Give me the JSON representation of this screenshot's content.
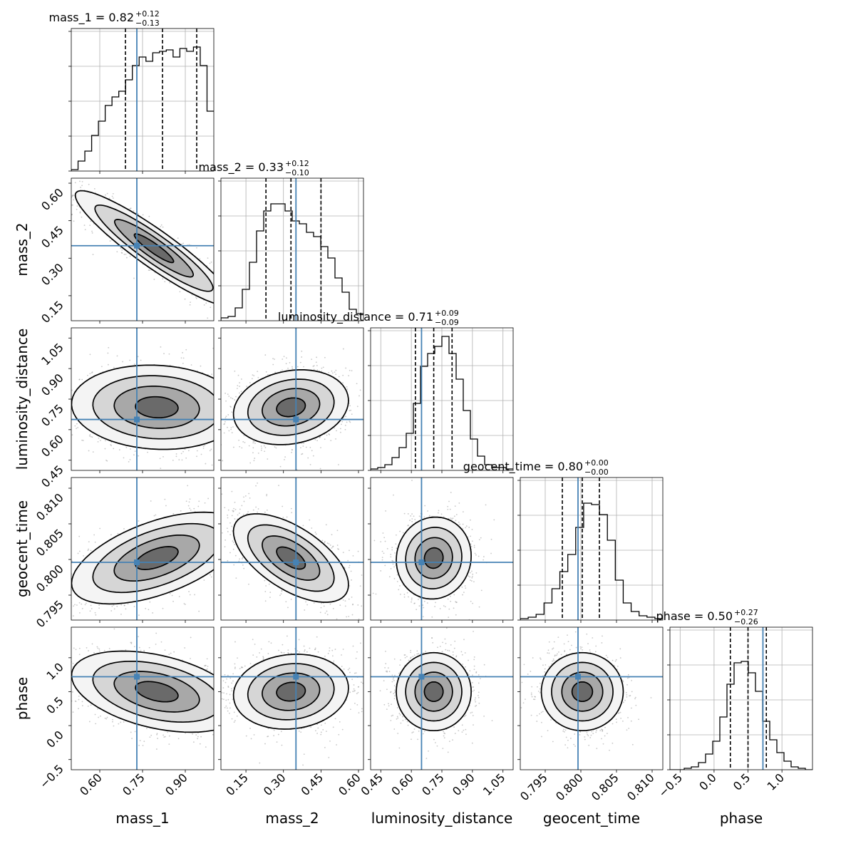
{
  "chart_data": {
    "type": "corner",
    "parameters": [
      {
        "name": "mass_1",
        "median": 0.82,
        "plus": "0.12",
        "minus": "0.13",
        "median_label": "0.82",
        "quantiles": [
          0.69,
          0.82,
          0.94
        ],
        "truth": 0.73,
        "range": [
          0.5,
          1.0
        ],
        "ticks": [
          0.6,
          0.75,
          0.9
        ],
        "tick_labels": [
          "0.60",
          "0.75",
          "0.90"
        ],
        "hist": [
          0.01,
          0.07,
          0.14,
          0.25,
          0.35,
          0.46,
          0.52,
          0.56,
          0.64,
          0.74,
          0.8,
          0.77,
          0.83,
          0.84,
          0.85,
          0.8,
          0.86,
          0.84,
          0.87,
          0.74,
          0.42
        ]
      },
      {
        "name": "mass_2",
        "median": 0.33,
        "plus": "0.12",
        "minus": "0.10",
        "median_label": "0.33",
        "quantiles": [
          0.23,
          0.33,
          0.45
        ],
        "truth": 0.35,
        "range": [
          0.05,
          0.62
        ],
        "ticks": [
          0.15,
          0.3,
          0.45,
          0.6
        ],
        "tick_labels": [
          "0.15",
          "0.30",
          "0.45",
          "0.60"
        ],
        "hist": [
          0.02,
          0.03,
          0.09,
          0.22,
          0.41,
          0.63,
          0.77,
          0.82,
          0.82,
          0.77,
          0.7,
          0.68,
          0.62,
          0.59,
          0.52,
          0.44,
          0.3,
          0.2,
          0.08,
          0.05
        ]
      },
      {
        "name": "luminosity_distance",
        "median": 0.71,
        "plus": "0.09",
        "minus": "0.09",
        "median_label": "0.71",
        "quantiles": [
          0.62,
          0.71,
          0.8
        ],
        "truth": 0.65,
        "range": [
          0.4,
          1.1
        ],
        "ticks": [
          0.45,
          0.6,
          0.75,
          0.9,
          1.05
        ],
        "tick_labels": [
          "0.45",
          "0.60",
          "0.75",
          "0.90",
          "1.05"
        ],
        "hist": [
          0.01,
          0.02,
          0.04,
          0.09,
          0.16,
          0.26,
          0.47,
          0.73,
          0.82,
          0.87,
          0.94,
          0.82,
          0.64,
          0.42,
          0.22,
          0.1,
          0.04,
          0.02,
          0.02,
          0.01
        ]
      },
      {
        "name": "geocent_time",
        "median": 0.8,
        "plus": "0.00",
        "minus": "0.00",
        "median_label": "0.80",
        "quantiles": [
          0.7974,
          0.8002,
          0.8026
        ],
        "truth": 0.7996,
        "range": [
          0.7915,
          0.8115
        ],
        "ticks": [
          0.795,
          0.8,
          0.805,
          0.81
        ],
        "tick_labels": [
          "0.795",
          "0.800",
          "0.805",
          "0.810"
        ],
        "hist": [
          0.01,
          0.02,
          0.04,
          0.12,
          0.22,
          0.34,
          0.46,
          0.65,
          0.82,
          0.81,
          0.74,
          0.56,
          0.28,
          0.12,
          0.06,
          0.03,
          0.02,
          0.01
        ]
      },
      {
        "name": "phase",
        "median": 0.5,
        "plus": "0.27",
        "minus": "0.26",
        "median_label": "0.50",
        "quantiles": [
          0.24,
          0.5,
          0.77
        ],
        "truth": 0.72,
        "range": [
          -0.65,
          1.45
        ],
        "ticks": [
          -0.5,
          0.0,
          0.5,
          1.0
        ],
        "tick_labels": [
          "−0.5",
          "0.0",
          "0.5",
          "1.0"
        ],
        "hist": [
          0.0,
          0.0,
          0.01,
          0.02,
          0.05,
          0.11,
          0.2,
          0.37,
          0.6,
          0.75,
          0.76,
          0.68,
          0.55,
          0.34,
          0.21,
          0.12,
          0.06,
          0.02,
          0.01,
          0.0
        ]
      }
    ],
    "pairs": [
      {
        "x": "mass_1",
        "y": "mass_2",
        "center": [
          0.79,
          0.34
        ],
        "spread": [
          0.12,
          0.1
        ],
        "rho": -0.92
      },
      {
        "x": "mass_1",
        "y": "luminosity_distance",
        "center": [
          0.8,
          0.71
        ],
        "spread": [
          0.13,
          0.09
        ],
        "rho": -0.08
      },
      {
        "x": "mass_2",
        "y": "luminosity_distance",
        "center": [
          0.33,
          0.71
        ],
        "spread": [
          0.1,
          0.08
        ],
        "rho": 0.18
      },
      {
        "x": "mass_1",
        "y": "geocent_time",
        "center": [
          0.8,
          0.8002
        ],
        "spread": [
          0.13,
          0.0028
        ],
        "rho": 0.55
      },
      {
        "x": "mass_2",
        "y": "geocent_time",
        "center": [
          0.33,
          0.8002
        ],
        "spread": [
          0.1,
          0.0027
        ],
        "rho": -0.6
      },
      {
        "x": "luminosity_distance",
        "y": "geocent_time",
        "center": [
          0.71,
          0.8002
        ],
        "spread": [
          0.08,
          0.0025
        ],
        "rho": 0.05
      },
      {
        "x": "mass_1",
        "y": "phase",
        "center": [
          0.8,
          0.5
        ],
        "spread": [
          0.13,
          0.26
        ],
        "rho": -0.4
      },
      {
        "x": "mass_2",
        "y": "phase",
        "center": [
          0.33,
          0.5
        ],
        "spread": [
          0.1,
          0.24
        ],
        "rho": 0.1
      },
      {
        "x": "luminosity_distance",
        "y": "phase",
        "center": [
          0.71,
          0.5
        ],
        "spread": [
          0.08,
          0.25
        ],
        "rho": 0.0
      },
      {
        "x": "geocent_time",
        "y": "phase",
        "center": [
          0.8002,
          0.5
        ],
        "spread": [
          0.0025,
          0.25
        ],
        "rho": 0.0
      }
    ],
    "grid": true,
    "truth_color": "#4682b4",
    "hist_color": "#000000",
    "quantile_style": "dashed",
    "contour_color": "#000000"
  }
}
